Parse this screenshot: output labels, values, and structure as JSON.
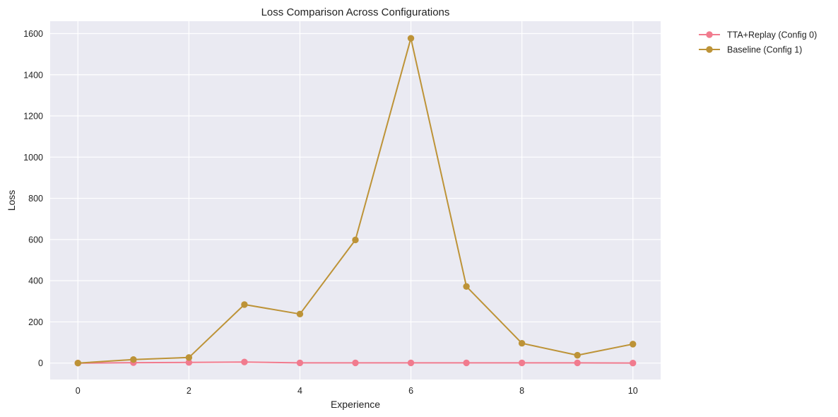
{
  "chart_data": {
    "type": "line",
    "title": "Loss Comparison Across Configurations",
    "xlabel": "Experience",
    "ylabel": "Loss",
    "x": [
      0,
      1,
      2,
      3,
      4,
      5,
      6,
      7,
      8,
      9,
      10
    ],
    "xlim": [
      -0.5,
      10.5
    ],
    "ylim": [
      -80,
      1660
    ],
    "xticks": [
      "0",
      "2",
      "4",
      "6",
      "8",
      "10"
    ],
    "yticks": [
      "0",
      "200",
      "400",
      "600",
      "800",
      "1000",
      "1200",
      "1400",
      "1600"
    ],
    "grid": true,
    "legend_position": "outside-top-right",
    "background_color": "#eaeaf2",
    "series": [
      {
        "name": "TTA+Replay (Config 0)",
        "color": "#f17b8e",
        "values": [
          0,
          2,
          3,
          5,
          1,
          1,
          1,
          1,
          1,
          1,
          0
        ]
      },
      {
        "name": "Baseline (Config 1)",
        "color": "#bd9337",
        "values": [
          0,
          17,
          27,
          284,
          238,
          598,
          1577,
          372,
          96,
          38,
          92
        ]
      }
    ]
  }
}
